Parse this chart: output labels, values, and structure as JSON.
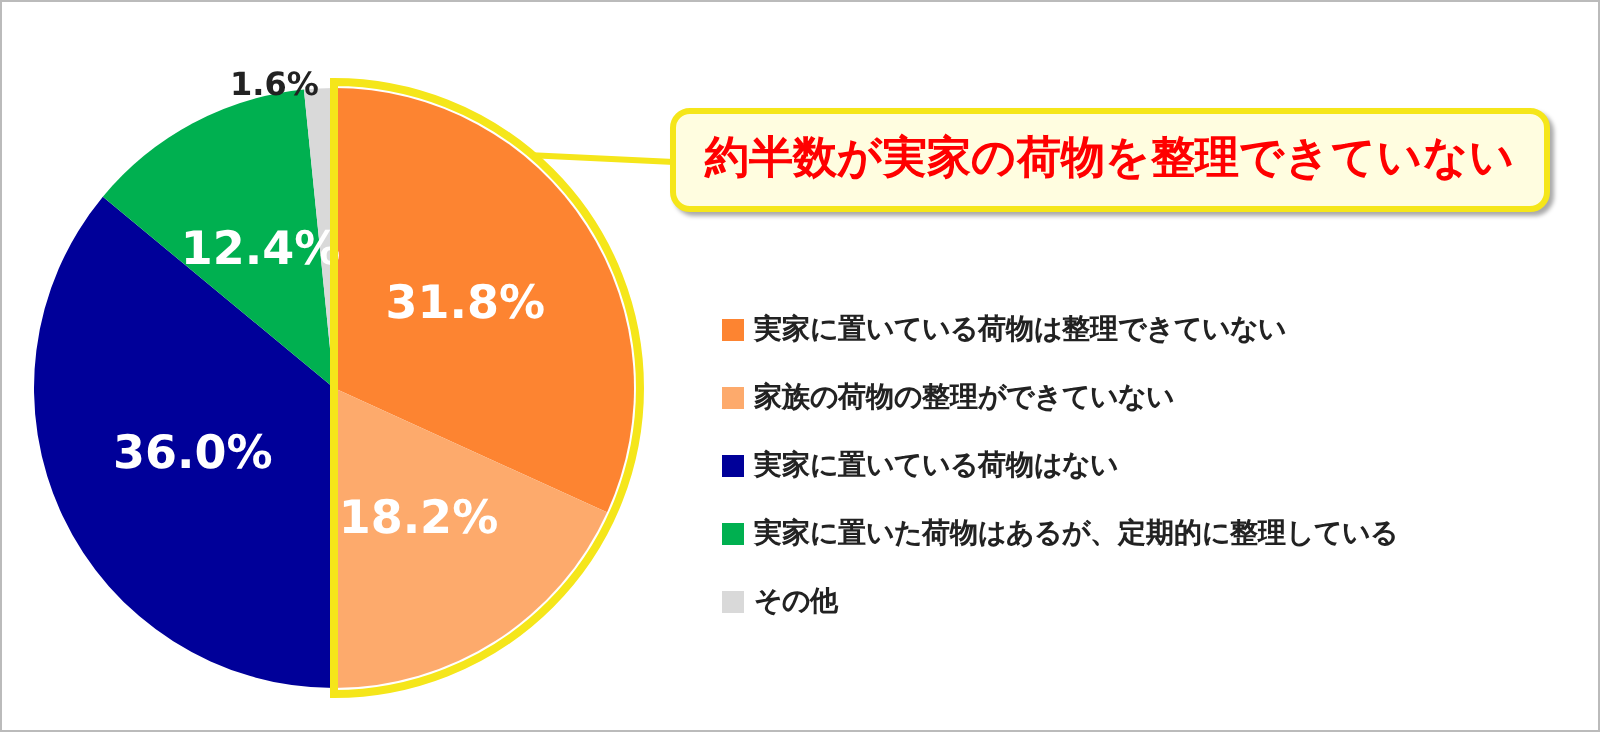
{
  "chart_data": {
    "type": "pie",
    "categories": [
      "実家に置いている荷物は整理できていない",
      "家族の荷物の整理ができていない",
      "実家に置いている荷物はない",
      "実家に置いた荷物はあるが、定期的に整理している",
      "その他"
    ],
    "values": [
      31.8,
      18.2,
      36.0,
      12.4,
      1.6
    ],
    "colors": [
      "#fd8431",
      "#fdaa6c",
      "#000099",
      "#00b050",
      "#d9d9d9"
    ],
    "value_labels": [
      "31.8%",
      "18.2%",
      "36.0%",
      "12.4%",
      "1.6%"
    ],
    "annotations": [
      "約半数が実家の荷物を整理できていない"
    ],
    "legend": "right"
  }
}
